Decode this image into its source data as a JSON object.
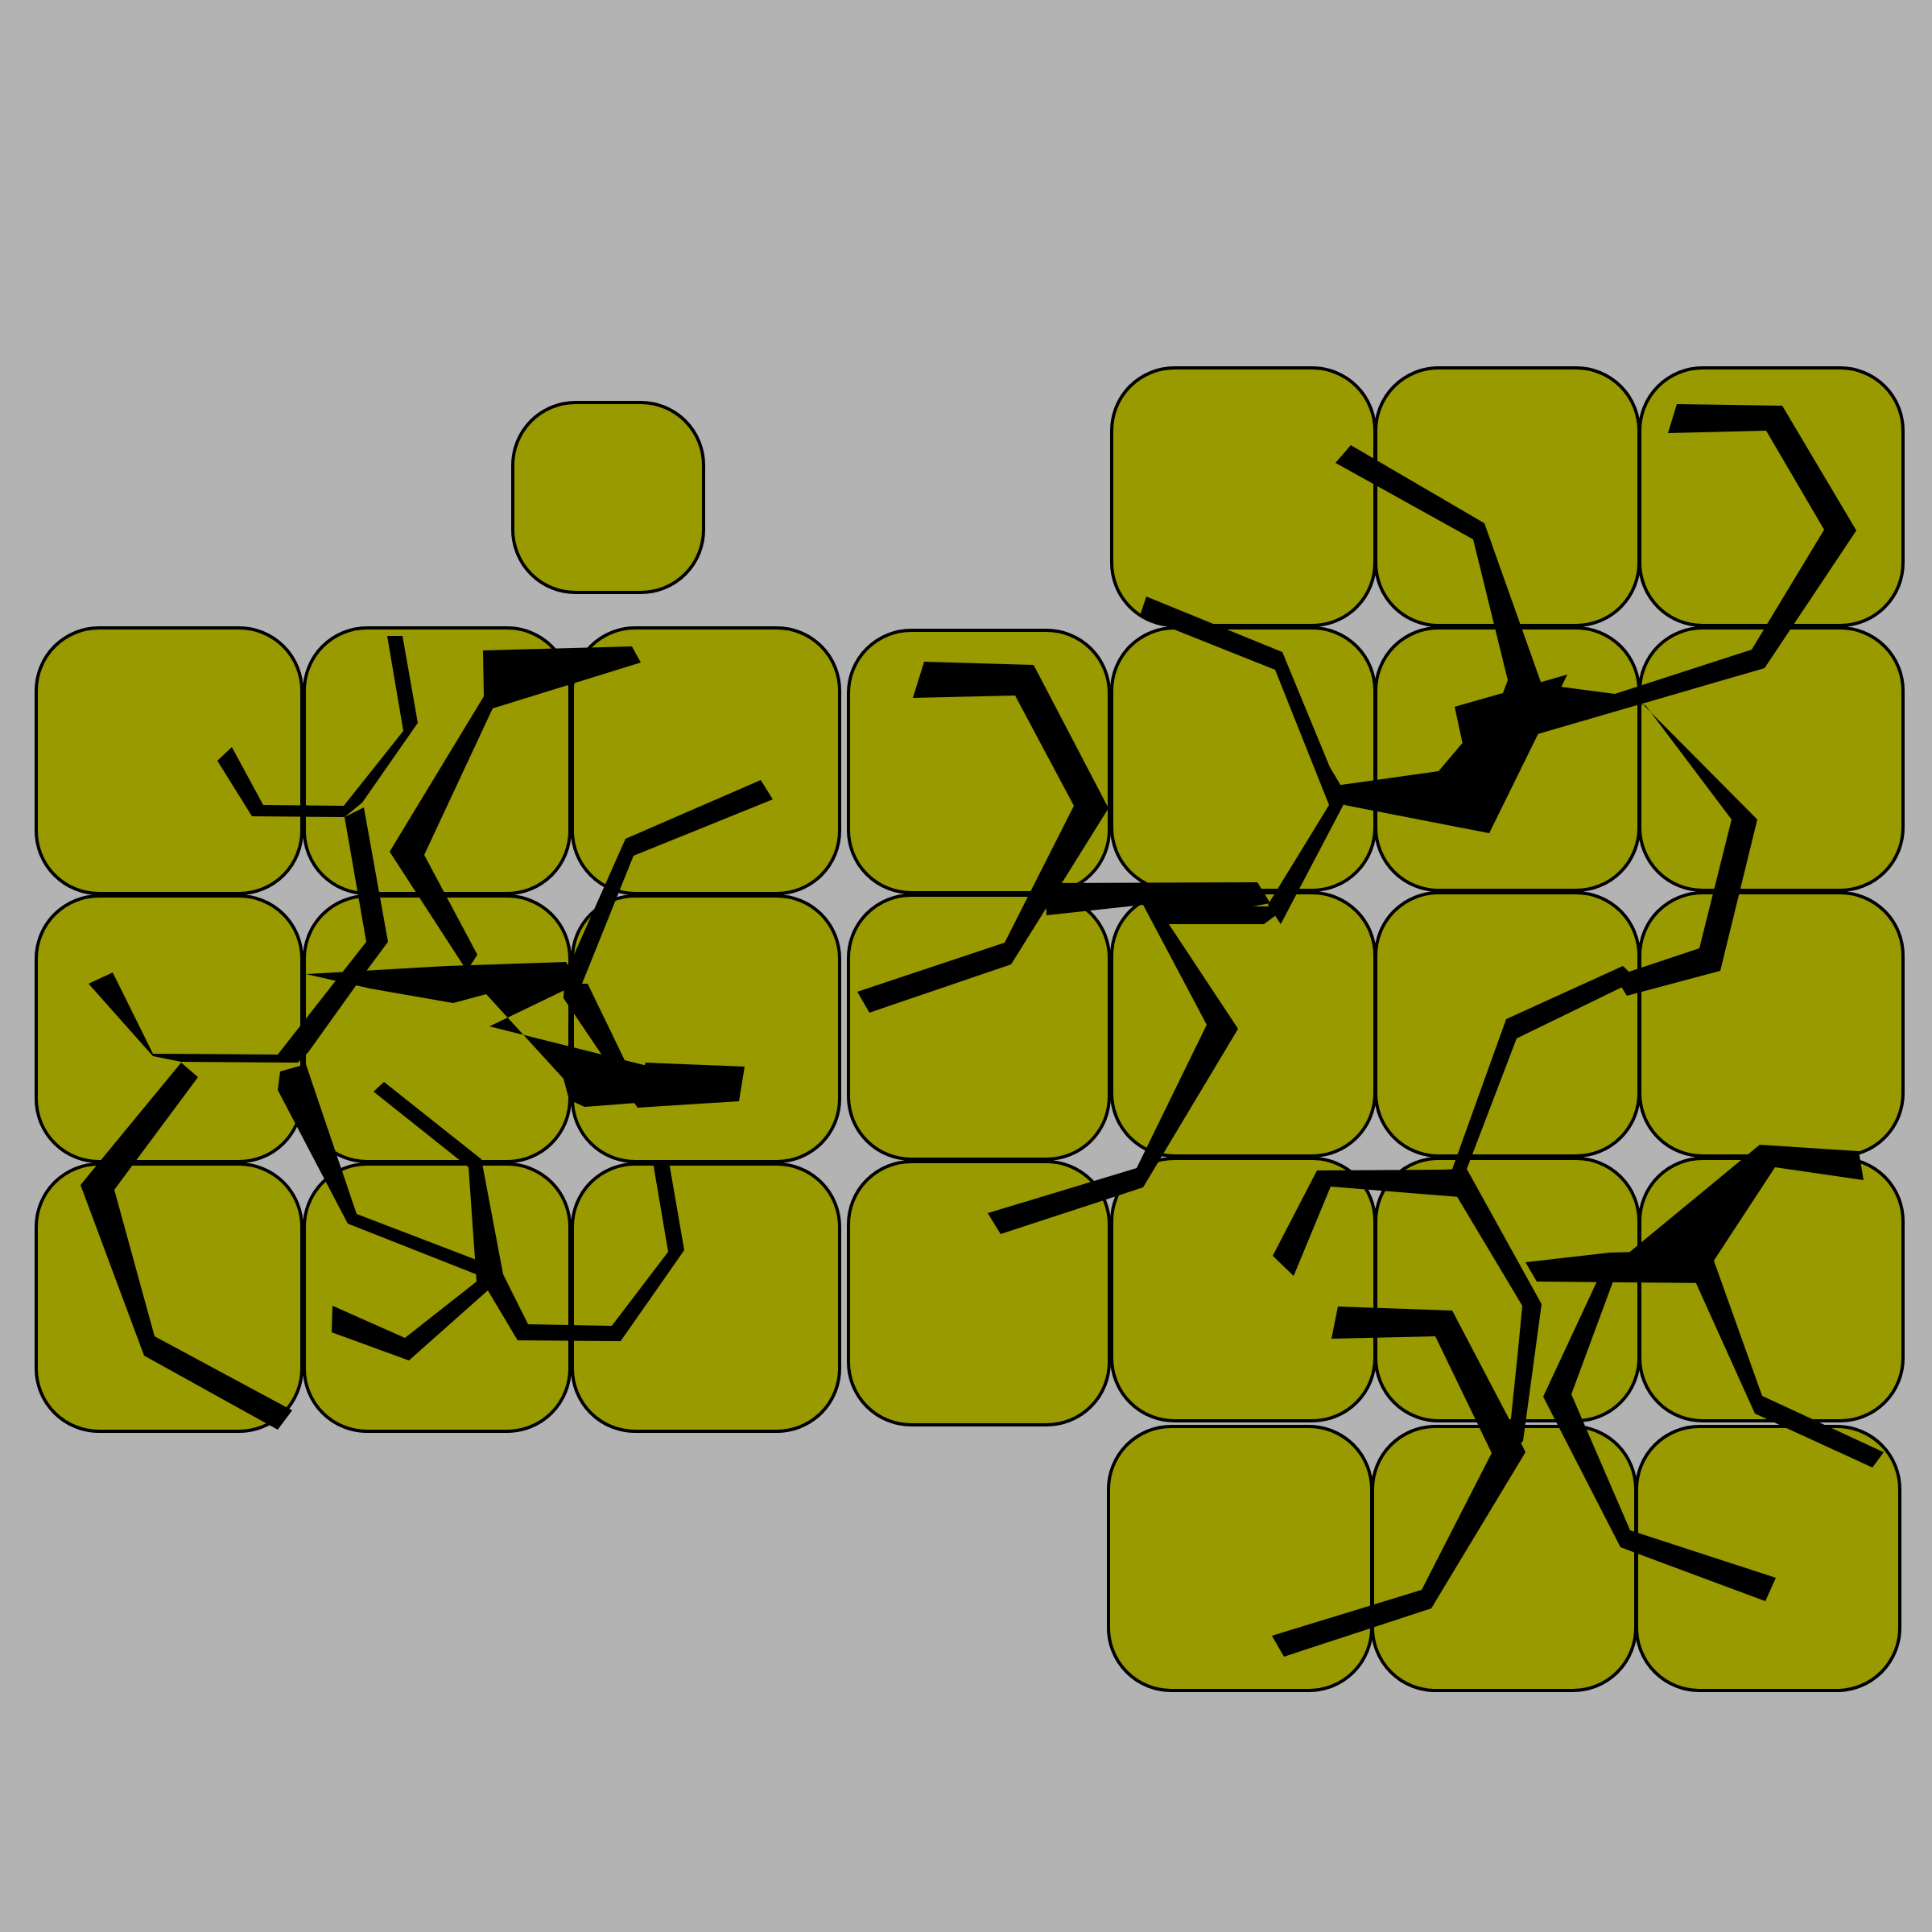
{
  "scene": {
    "description_kind": "abstract-puzzle",
    "colors": {
      "background": "#b3b3b3",
      "tile_fill": "#999900",
      "tile_stroke": "#000000",
      "stroke_line": "#000000"
    },
    "tile_groups": [
      {
        "name": "isolated-tile",
        "count": 1
      },
      {
        "name": "left-grid-tiles",
        "count": 9
      },
      {
        "name": "center-column-tiles",
        "count": 3
      },
      {
        "name": "right-grid-tiles",
        "count": 15
      }
    ],
    "stroke_count": 9
  }
}
